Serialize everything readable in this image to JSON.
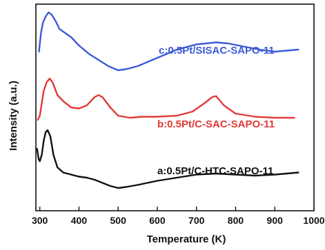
{
  "chart_data": {
    "type": "line",
    "xlabel": "Temperature (K)",
    "ylabel": "Intensity (a.u.)",
    "xlim": [
      290,
      1000
    ],
    "xticks": [
      300,
      400,
      500,
      600,
      700,
      800,
      900,
      1000
    ],
    "ylim": [
      0,
      100
    ],
    "y_tick_labels_visible": false,
    "grid": false,
    "legend": "none",
    "series": [
      {
        "name": "c:0.5Pt/SISAC-SAPO-11",
        "color": "#3B5BD6",
        "x": [
          298,
          303,
          308,
          315,
          322,
          330,
          340,
          350,
          365,
          380,
          400,
          425,
          450,
          475,
          500,
          520,
          550,
          600,
          650,
          700,
          750,
          780,
          820,
          860,
          900,
          930,
          960
        ],
        "y": [
          77,
          86,
          91,
          94,
          96,
          95,
          92,
          88,
          86,
          84,
          80,
          76,
          73,
          70,
          68,
          68.5,
          70,
          74,
          78,
          80.5,
          81.5,
          81,
          79.5,
          78,
          77,
          77.5,
          78
        ]
      },
      {
        "name": "b:0.5Pt/C-SAC-SAPO-11",
        "color": "#E23A36",
        "x": [
          295,
          300,
          305,
          310,
          317,
          325,
          333,
          345,
          360,
          380,
          400,
          420,
          440,
          450,
          460,
          480,
          500,
          530,
          560,
          600,
          650,
          690,
          720,
          740,
          750,
          770,
          800,
          850,
          900,
          950
        ],
        "y": [
          44,
          46,
          52,
          58,
          62,
          64,
          62,
          56,
          53,
          50,
          49.5,
          51,
          55,
          56,
          55,
          50,
          46,
          45,
          45.5,
          45.5,
          46,
          48,
          52,
          55,
          55.5,
          51,
          47,
          45.5,
          45,
          45
        ]
      },
      {
        "name": "a:0.5Pt/C-HTC-SAPO-11",
        "color": "#111111",
        "x": [
          293,
          297,
          300,
          305,
          310,
          315,
          320,
          327,
          335,
          345,
          360,
          380,
          400,
          420,
          440,
          460,
          480,
          500,
          520,
          550,
          600,
          650,
          700,
          750,
          800,
          850,
          900,
          930,
          960
        ],
        "y": [
          30,
          25,
          24,
          27,
          34,
          38,
          39,
          36,
          27,
          21,
          18.5,
          17.5,
          16.5,
          16,
          15,
          13.5,
          12,
          11,
          11.5,
          12.5,
          14.5,
          16,
          17.5,
          18,
          17.5,
          17,
          17.5,
          18,
          18.5
        ]
      }
    ],
    "annotations": [
      {
        "text": "c:0.5Pt/SISAC-SAPO-11",
        "color": "#3B5BD6"
      },
      {
        "text": "b:0.5Pt/C-SAC-SAPO-11",
        "color": "#E23A36"
      },
      {
        "text": "a:0.5Pt/C-HTC-SAPO-11",
        "color": "#111111"
      }
    ]
  }
}
